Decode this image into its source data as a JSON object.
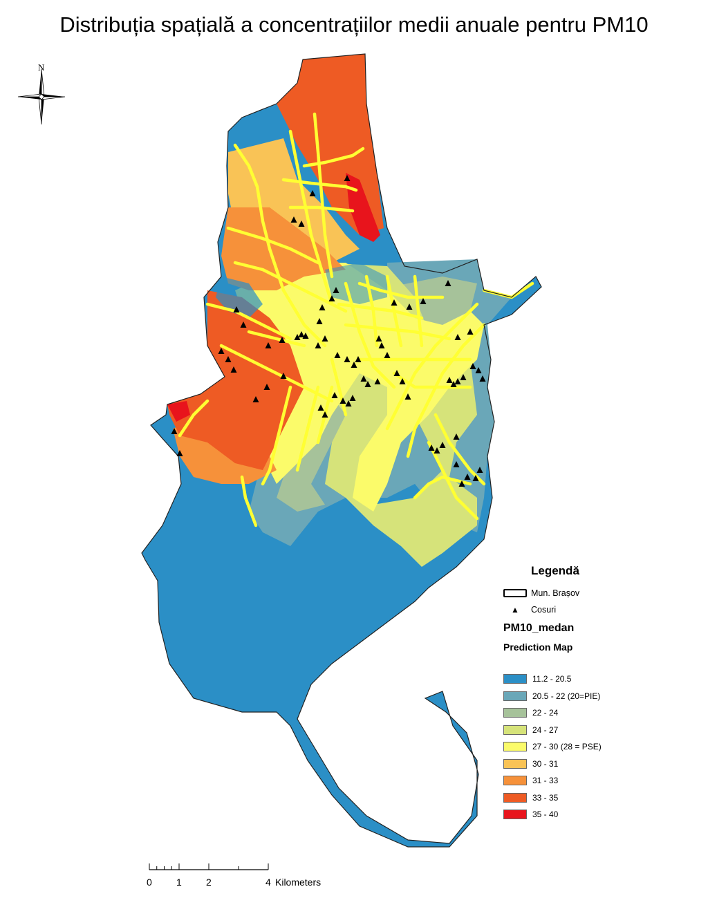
{
  "title": "Distribuția spațială a concentrațiilor medii anuale pentru PM10",
  "north_arrow": {
    "label": "N",
    "icon": "compass-rose-icon"
  },
  "legend": {
    "title": "Legendă",
    "boundary_label": "Mun. Brașov",
    "points_label": "Cosuri",
    "layer_name": "PM10_medan",
    "layer_subtitle": "Prediction Map",
    "classes": [
      {
        "label": "11.2 - 20.5",
        "color": "#2b8fc6"
      },
      {
        "label": "20.5 - 22 (20=PIE)",
        "color": "#6aa7b8"
      },
      {
        "label": "22 - 24",
        "color": "#a6c29a"
      },
      {
        "label": "24 - 27",
        "color": "#d6e37a"
      },
      {
        "label": "27 - 30 (28 = PSE)",
        "color": "#fbfb6a"
      },
      {
        "label": "30 - 31",
        "color": "#f9c356"
      },
      {
        "label": "31 - 33",
        "color": "#f6913a"
      },
      {
        "label": "33 - 35",
        "color": "#ee5b24"
      },
      {
        "label": "35 - 40",
        "color": "#e8141c"
      }
    ]
  },
  "scale_bar": {
    "ticks": [
      "0",
      "1",
      "2",
      "4"
    ],
    "unit": "Kilometers"
  },
  "colors": {
    "roads": "#ffff33",
    "points": "#000000",
    "boundary": "#000000"
  }
}
